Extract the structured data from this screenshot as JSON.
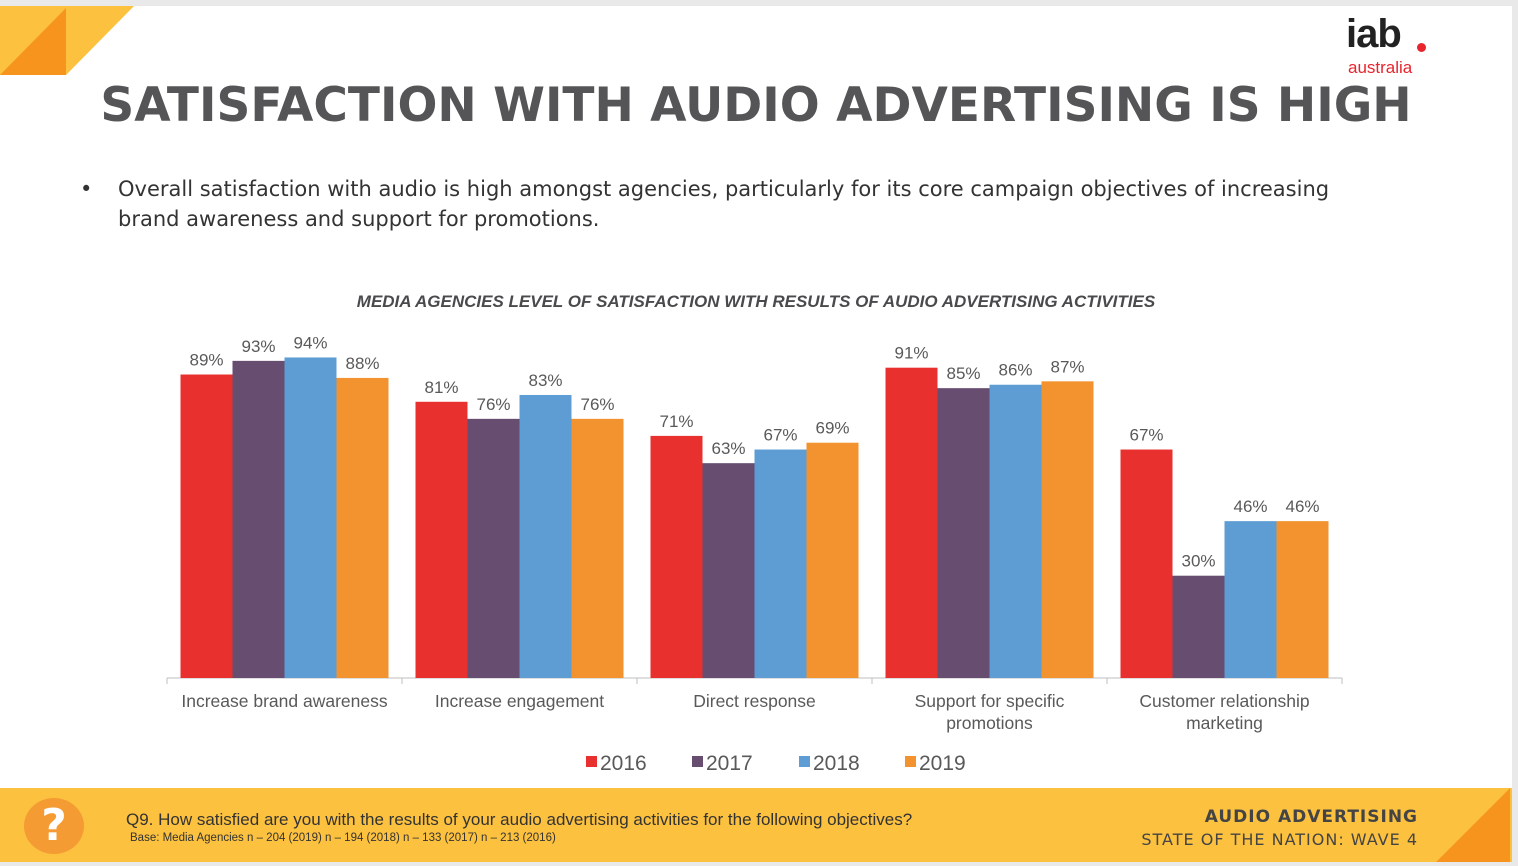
{
  "header": {
    "title": "SATISFACTION WITH AUDIO ADVERTISING IS HIGH",
    "logo": {
      "main": "iab",
      "sub": "australia"
    }
  },
  "bullet": {
    "symbol": "•",
    "text": "Overall satisfaction with audio is high amongst agencies, particularly for its core campaign objectives of increasing brand awareness and support for promotions."
  },
  "chart_data": {
    "type": "bar",
    "title": "MEDIA AGENCIES LEVEL OF SATISFACTION WITH RESULTS OF AUDIO ADVERTISING ACTIVITIES",
    "categories": [
      [
        "Increase brand awareness"
      ],
      [
        "Increase engagement"
      ],
      [
        "Direct response"
      ],
      [
        "Support for specific",
        "promotions"
      ],
      [
        "Customer relationship",
        "marketing"
      ]
    ],
    "series": [
      {
        "name": "2016",
        "color": "#e8302e",
        "values": [
          89,
          81,
          71,
          91,
          67
        ]
      },
      {
        "name": "2017",
        "color": "#674e70",
        "values": [
          93,
          76,
          63,
          85,
          30
        ]
      },
      {
        "name": "2018",
        "color": "#5e9cd4",
        "values": [
          94,
          83,
          67,
          86,
          46
        ]
      },
      {
        "name": "2019",
        "color": "#f29330",
        "values": [
          88,
          76,
          69,
          87,
          46
        ]
      }
    ],
    "value_suffix": "%",
    "ylim": [
      0,
      100
    ],
    "grid": false,
    "legend_position": "bottom"
  },
  "footer": {
    "question_icon": "question-mark-icon",
    "question_symbol": "?",
    "question": "Q9. How satisfied are you with the results of your audio advertising activities for the following objectives?",
    "base": "Base: Media Agencies n – 204 (2019) n – 194 (2018) n – 133 (2017) n – 213 (2016)",
    "brand_line1": "AUDIO ADVERTISING",
    "brand_line2": "STATE OF THE NATION: WAVE 4"
  },
  "colors": {
    "accent_orange": "#f7941d",
    "accent_yellow": "#fcc13e",
    "brand_red": "#e8252d"
  }
}
